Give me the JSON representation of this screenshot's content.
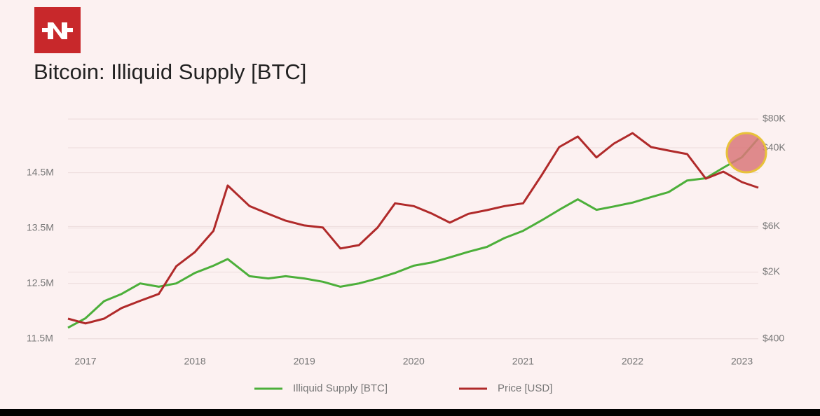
{
  "chart_data": {
    "type": "line",
    "title": "Bitcoin: Illiquid Supply [BTC]",
    "x": [
      2016.84,
      2017,
      2017.17,
      2017.33,
      2017.5,
      2017.67,
      2017.83,
      2018,
      2018.17,
      2018.3,
      2018.5,
      2018.67,
      2018.83,
      2019,
      2019.17,
      2019.33,
      2019.5,
      2019.67,
      2019.83,
      2020,
      2020.17,
      2020.33,
      2020.5,
      2020.67,
      2020.83,
      2021,
      2021.17,
      2021.33,
      2021.5,
      2021.67,
      2021.83,
      2022,
      2022.17,
      2022.33,
      2022.5,
      2022.67,
      2022.83,
      2023,
      2023.15
    ],
    "xlim": [
      2016.84,
      2023.15
    ],
    "xticks": [
      2017,
      2018,
      2019,
      2020,
      2021,
      2022,
      2023
    ],
    "ylim": [
      11420000,
      15470000
    ],
    "yticks": [
      {
        "value": 11500000,
        "label": "11.5M"
      },
      {
        "value": 12500000,
        "label": "12.5M"
      },
      {
        "value": 13500000,
        "label": "13.5M"
      },
      {
        "value": 14500000,
        "label": "14.5M"
      }
    ],
    "y2lim": [
      360,
      80000
    ],
    "y2ticks": [
      {
        "value": 400,
        "label": "$400"
      },
      {
        "value": 2000,
        "label": "$2K"
      },
      {
        "value": 6000,
        "label": "$6K"
      },
      {
        "value": 40000,
        "label": "$40K"
      },
      {
        "value": 80000,
        "label": "$80K"
      }
    ],
    "y2_log": true,
    "grid": true,
    "series": [
      {
        "name": "Illiquid Supply [BTC]",
        "color": "#4caf3a",
        "values": [
          11700000,
          11870000,
          12180000,
          12310000,
          12500000,
          12440000,
          12500000,
          12690000,
          12820000,
          12940000,
          12630000,
          12590000,
          12630000,
          12590000,
          12530000,
          12440000,
          12500000,
          12590000,
          12690000,
          12820000,
          12880000,
          12970000,
          13070000,
          13160000,
          13320000,
          13450000,
          13640000,
          13830000,
          14020000,
          13830000,
          13890000,
          13960000,
          14060000,
          14150000,
          14360000,
          14400000,
          14590000,
          14780000,
          15120000
        ]
      },
      {
        "name": "Price [USD]",
        "color": "#b02a2a",
        "axis": "y2",
        "values": [
          650,
          580,
          650,
          840,
          1000,
          1180,
          2300,
          3240,
          5400,
          16100,
          9800,
          8150,
          6900,
          6150,
          5850,
          3530,
          3830,
          5850,
          10500,
          9800,
          8150,
          6580,
          8150,
          8900,
          9800,
          10500,
          20700,
          40700,
          52500,
          31700,
          44300,
          57000,
          40700,
          37400,
          34400,
          19000,
          22500,
          17500,
          15300
        ]
      }
    ]
  }
}
